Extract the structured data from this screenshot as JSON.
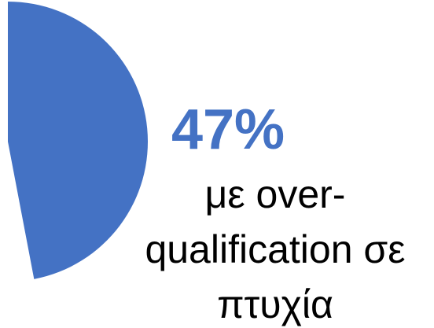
{
  "chart_data": {
    "type": "pie",
    "values": [
      47
    ],
    "value_labels": [
      "47%"
    ],
    "categories": [
      "με over-qualification σε πτυχία"
    ],
    "color": "#4472c4"
  }
}
